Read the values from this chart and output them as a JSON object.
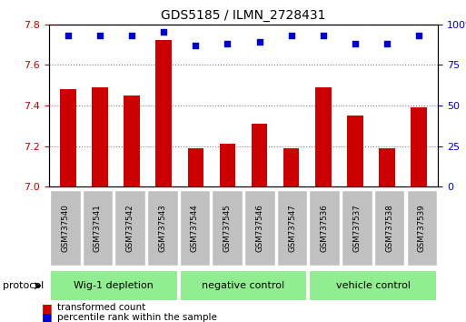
{
  "title": "GDS5185 / ILMN_2728431",
  "samples": [
    "GSM737540",
    "GSM737541",
    "GSM737542",
    "GSM737543",
    "GSM737544",
    "GSM737545",
    "GSM737546",
    "GSM737547",
    "GSM737536",
    "GSM737537",
    "GSM737538",
    "GSM737539"
  ],
  "red_values": [
    7.48,
    7.49,
    7.45,
    7.72,
    7.19,
    7.21,
    7.31,
    7.19,
    7.49,
    7.35,
    7.19,
    7.39
  ],
  "blue_values": [
    93,
    93,
    93,
    95,
    87,
    88,
    89,
    93,
    93,
    88,
    88,
    93
  ],
  "ylim_left": [
    7.0,
    7.8
  ],
  "ylim_right": [
    0,
    100
  ],
  "yticks_left": [
    7.0,
    7.2,
    7.4,
    7.6,
    7.8
  ],
  "yticks_right": [
    0,
    25,
    50,
    75,
    100
  ],
  "group_labels": [
    "Wig-1 depletion",
    "negative control",
    "vehicle control"
  ],
  "group_ranges": [
    [
      0,
      3
    ],
    [
      4,
      7
    ],
    [
      8,
      11
    ]
  ],
  "bar_color": "#CC0000",
  "dot_color": "#0000CC",
  "bg_color": "#C0C0C0",
  "group_color": "#90EE90",
  "legend_red": "transformed count",
  "legend_blue": "percentile rank within the sample",
  "protocol_label": "protocol"
}
